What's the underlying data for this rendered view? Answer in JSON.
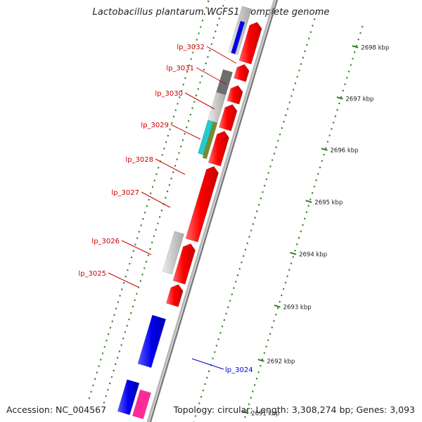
{
  "header": {
    "title": "Lactobacillus plantarum WCFS1, complete genome"
  },
  "footer": {
    "accession": "Accession: NC_004567",
    "summary": "Topology: circular; Length: 3,308,274 bp; Genes: 3,093"
  },
  "ticks": [
    "2698 kbp",
    "2697 kbp",
    "2696 kbp",
    "2695 kbp",
    "2694 kbp",
    "2693 kbp",
    "2692 kbp",
    "2691 kbp"
  ],
  "gene_labels": [
    {
      "name": "lp_3032",
      "color": "#cc0000"
    },
    {
      "name": "lp_3031",
      "color": "#cc0000"
    },
    {
      "name": "lp_3030",
      "color": "#cc0000"
    },
    {
      "name": "lp_3029",
      "color": "#cc0000"
    },
    {
      "name": "lp_3028",
      "color": "#cc0000"
    },
    {
      "name": "lp_3027",
      "color": "#cc0000"
    },
    {
      "name": "lp_3026",
      "color": "#cc0000"
    },
    {
      "name": "lp_3025",
      "color": "#cc0000"
    },
    {
      "name": "lp_3024",
      "color": "#0000cc"
    }
  ],
  "colors": {
    "cds_red": "#ff0000",
    "feature_blue": "#0000ee",
    "feature_grey": "#c8c8c8",
    "feature_dark_grey": "#6e6e6e",
    "feature_cyan": "#22cccc",
    "feature_olive": "#7a8a2a",
    "feature_pink": "#ff2a9a",
    "backbone": "#909090",
    "tick_green": "#2e7d1e"
  }
}
